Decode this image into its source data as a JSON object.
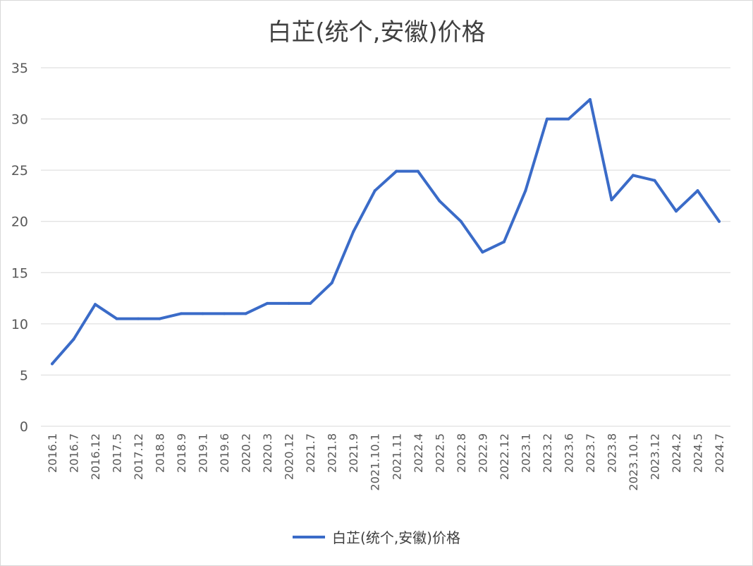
{
  "chart_data": {
    "type": "line",
    "title": "白芷(统个,安徽)价格",
    "xlabel": "",
    "ylabel": "",
    "ylim": [
      0,
      35
    ],
    "yticks": [
      "0",
      "5",
      "10",
      "15",
      "20",
      "25",
      "30",
      "35"
    ],
    "grid": true,
    "legend_position": "bottom",
    "line_color": "#3a6bc8",
    "categories": [
      "2016.1",
      "2016.7",
      "2016.12",
      "2017.5",
      "2017.12",
      "2018.8",
      "2018.9",
      "2019.1",
      "2019.6",
      "2020.2",
      "2020.3",
      "2020.12",
      "2021.7",
      "2021.8",
      "2021.9",
      "2021.10.1",
      "2021.11",
      "2022.4",
      "2022.5",
      "2022.8",
      "2022.9",
      "2022.12",
      "2023.1",
      "2023.2",
      "2023.6",
      "2023.7",
      "2023.8",
      "2023.10.1",
      "2023.12",
      "2024.2",
      "2024.5",
      "2024.7"
    ],
    "series": [
      {
        "name": "白芷(统个,安徽)价格",
        "values": [
          6.1,
          8.5,
          11.9,
          10.5,
          10.5,
          10.5,
          11.0,
          11.0,
          11.0,
          11.0,
          12.0,
          12.0,
          12.0,
          14.0,
          19.0,
          23.0,
          24.9,
          24.9,
          22.0,
          20.0,
          17.0,
          18.0,
          23.0,
          30.0,
          30.0,
          31.9,
          22.1,
          24.5,
          24.0,
          21.0,
          23.0,
          20.0
        ]
      }
    ]
  }
}
